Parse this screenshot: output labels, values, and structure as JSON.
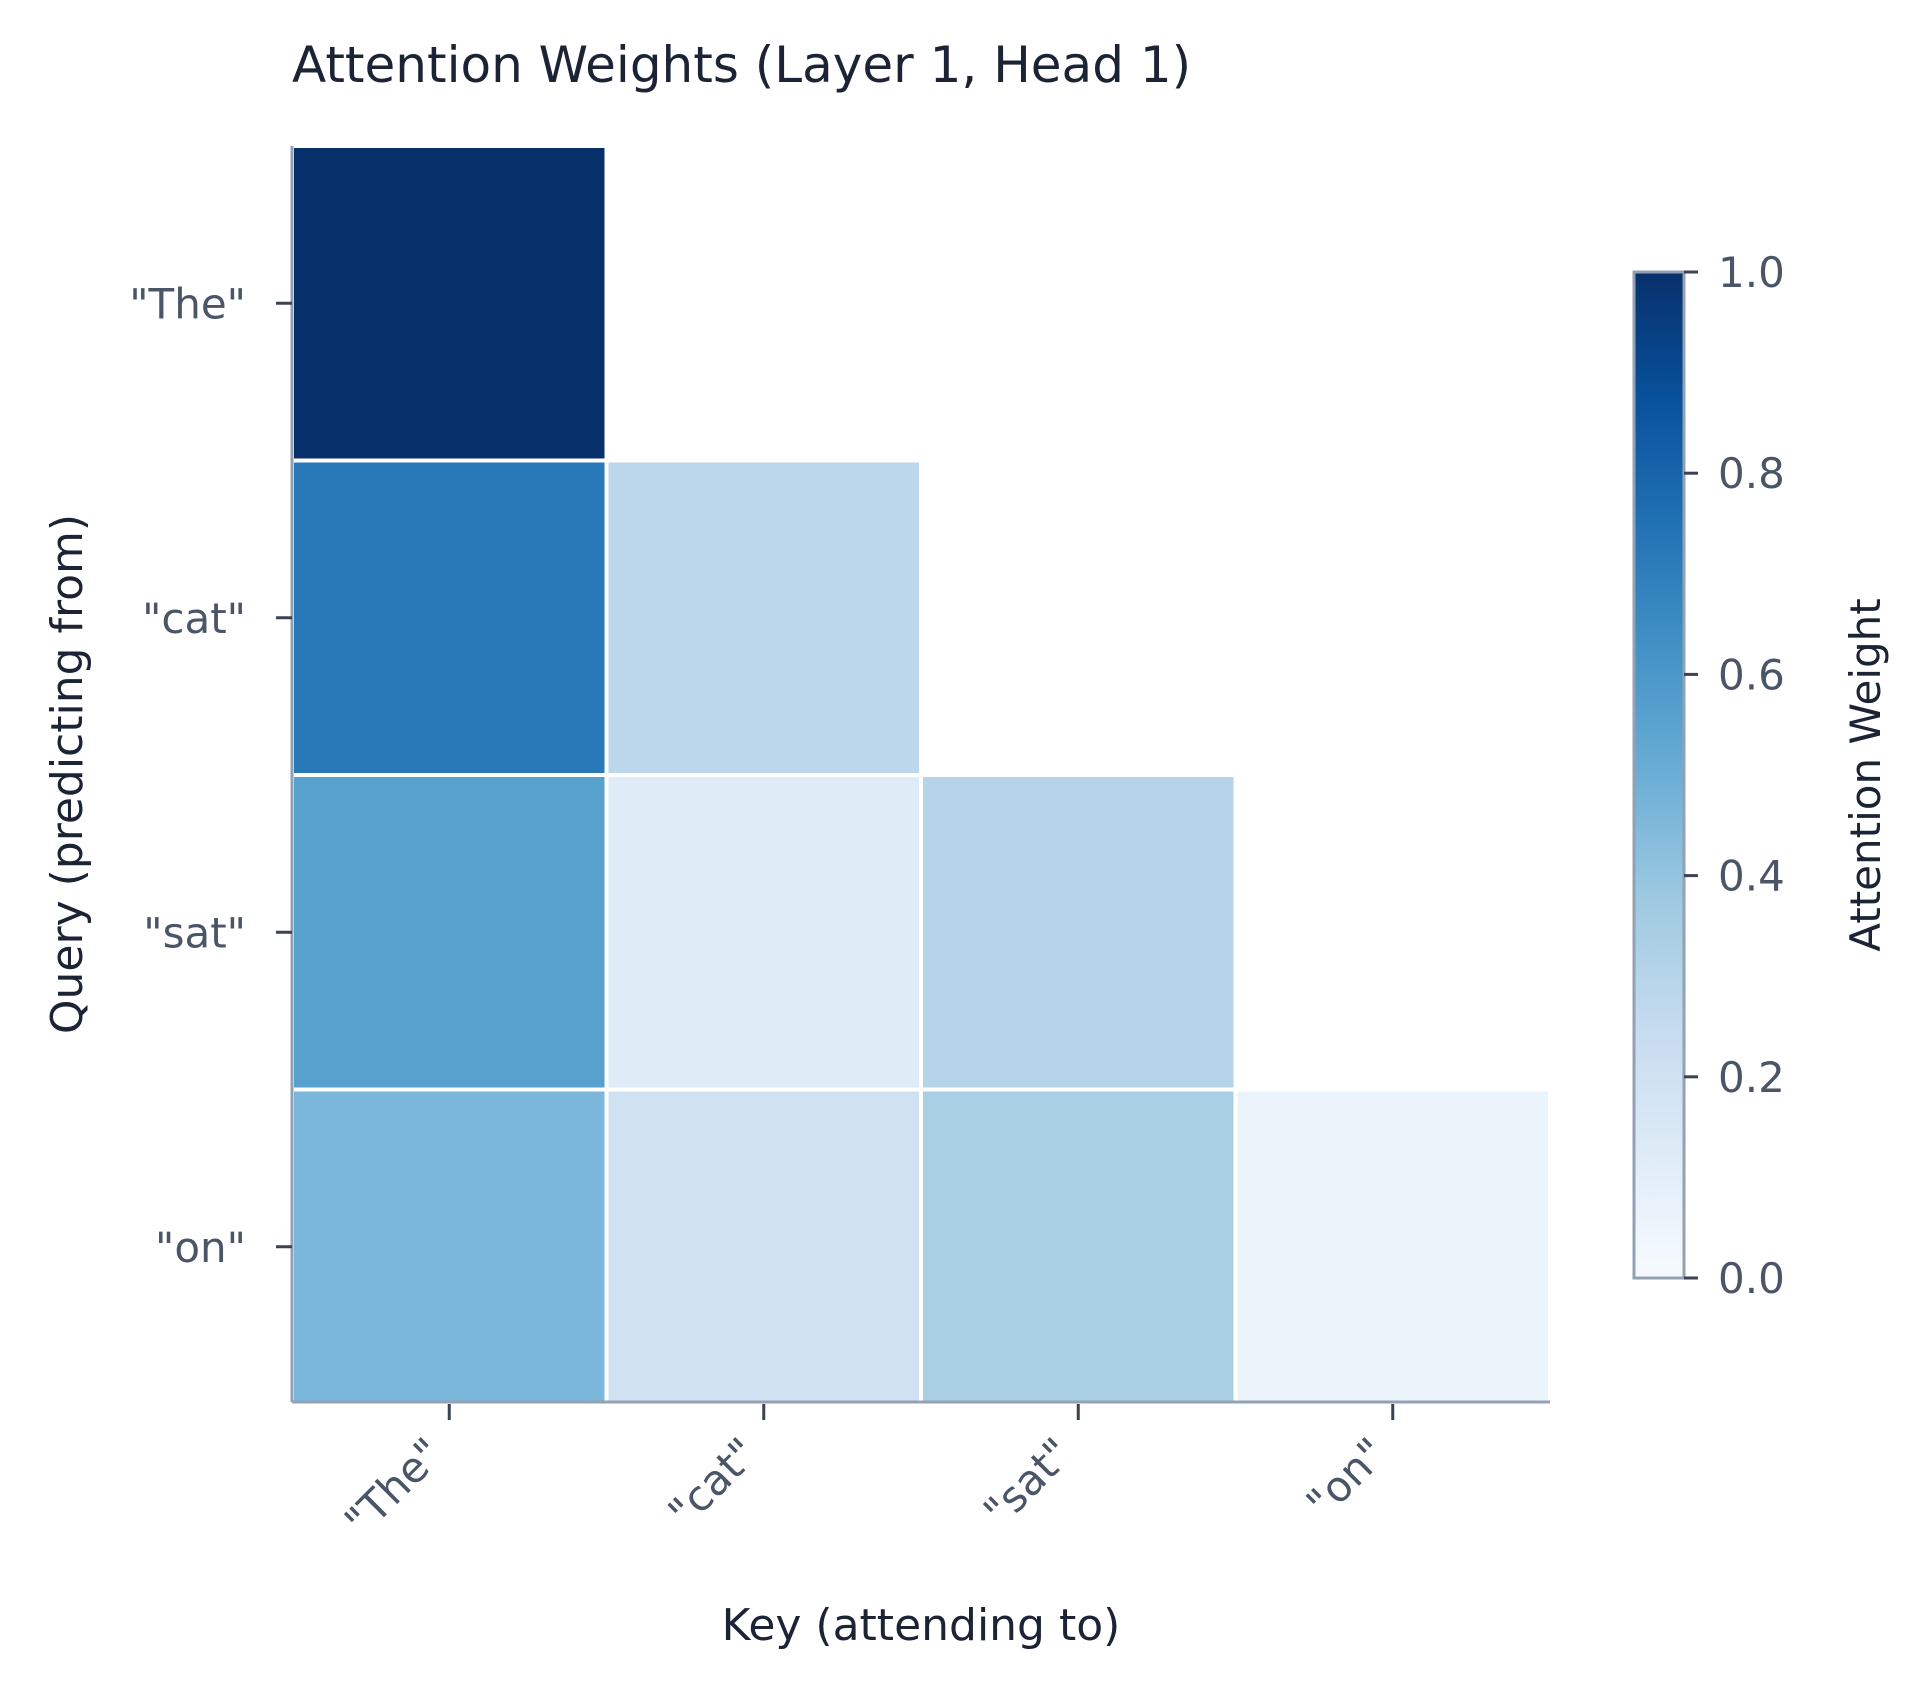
{
  "chart_data": {
    "type": "heatmap",
    "title": "Attention Weights (Layer 1, Head 1)",
    "xlabel": "Key (attending to)",
    "ylabel": "Query (predicting from)",
    "x_categories": [
      "\"The\"",
      "\"cat\"",
      "\"sat\"",
      "\"on\""
    ],
    "y_categories": [
      "\"The\"",
      "\"cat\"",
      "\"sat\"",
      "\"on\""
    ],
    "values": [
      [
        1.0,
        null,
        null,
        null
      ],
      [
        0.72,
        0.28,
        null,
        null
      ],
      [
        0.56,
        0.12,
        0.3,
        null
      ],
      [
        0.46,
        0.2,
        0.34,
        0.06
      ]
    ],
    "mask": "upper-triangle",
    "colorbar": {
      "label": "Attention Weight",
      "range": [
        0.0,
        1.0
      ],
      "ticks": [
        "0.0",
        "0.2",
        "0.4",
        "0.6",
        "0.8",
        "1.0"
      ],
      "colormap": "Blues"
    },
    "grid": false
  }
}
